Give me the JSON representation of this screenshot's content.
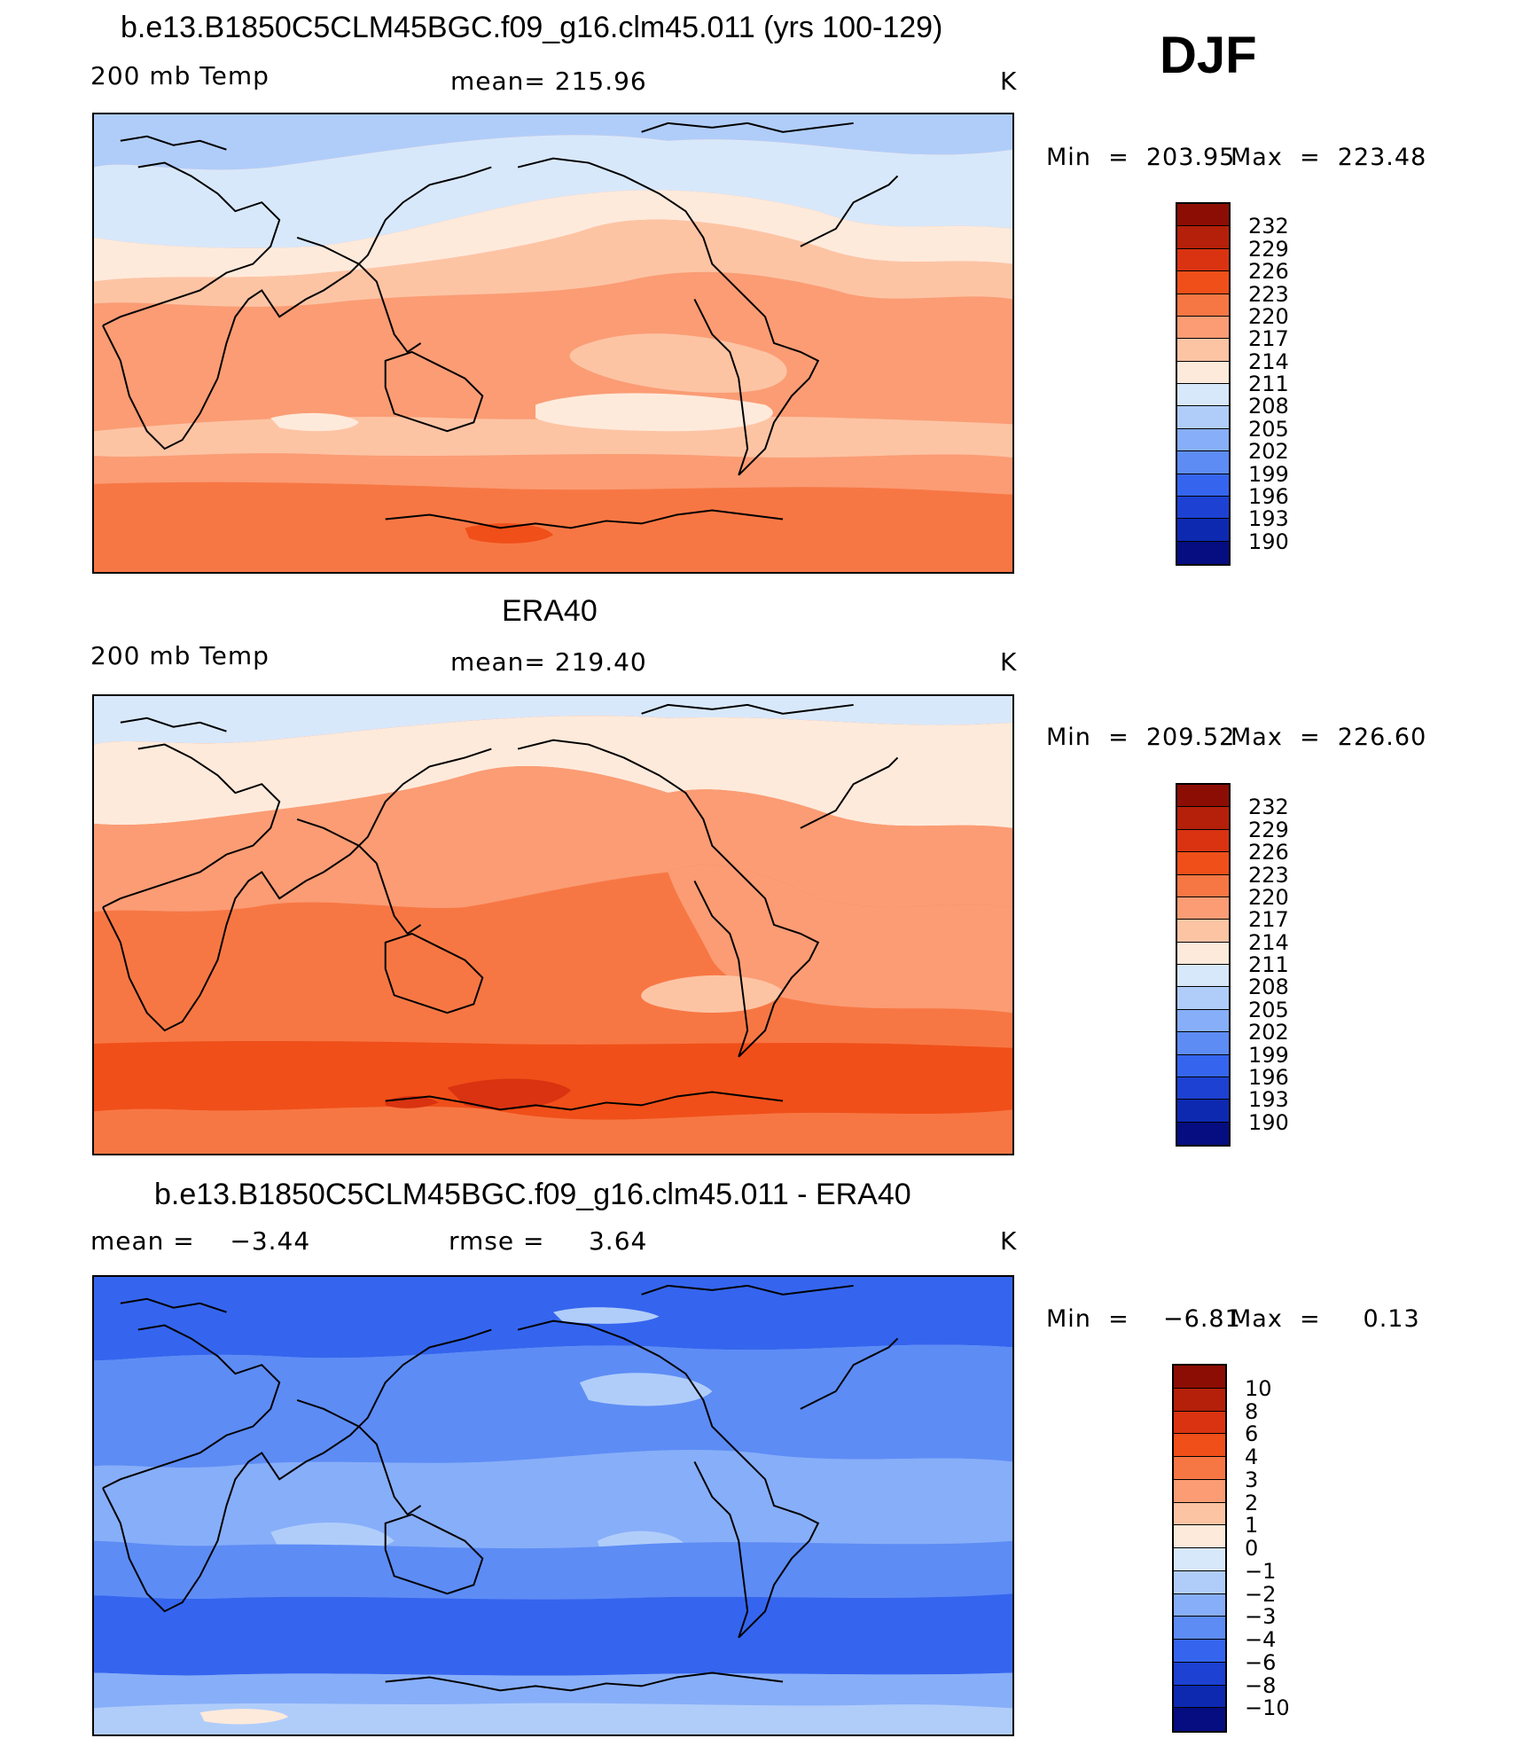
{
  "season": "DJF",
  "panels": [
    {
      "title": "b.e13.B1850C5CLM45BGC.f09_g16.clm45.011 (yrs 100-129)",
      "left": "200 mb Temp",
      "center": "mean= 215.96",
      "units": "K",
      "min_label": "Min  =  203.95",
      "max_label": "Max  =  223.48",
      "colorbar_labels": [
        "232",
        "229",
        "226",
        "223",
        "220",
        "217",
        "214",
        "211",
        "208",
        "205",
        "202",
        "199",
        "196",
        "193",
        "190"
      ],
      "colors": [
        "#8c0d04",
        "#b42009",
        "#d93311",
        "#f04f19",
        "#f77744",
        "#fb9c74",
        "#fdc4a4",
        "#feeadb",
        "#d8e8fb",
        "#b0cdfa",
        "#87aef8",
        "#5d8cf5",
        "#3565ee",
        "#1d41d2",
        "#0d29b0",
        "#050d80"
      ]
    },
    {
      "title": "ERA40",
      "left": "200 mb Temp",
      "center": "mean= 219.40",
      "units": "K",
      "min_label": "Min  =  209.52",
      "max_label": "Max  =  226.60",
      "colorbar_labels": [
        "232",
        "229",
        "226",
        "223",
        "220",
        "217",
        "214",
        "211",
        "208",
        "205",
        "202",
        "199",
        "196",
        "193",
        "190"
      ],
      "colors": [
        "#8c0d04",
        "#b42009",
        "#d93311",
        "#f04f19",
        "#f77744",
        "#fb9c74",
        "#fdc4a4",
        "#feeadb",
        "#d8e8fb",
        "#b0cdfa",
        "#87aef8",
        "#5d8cf5",
        "#3565ee",
        "#1d41d2",
        "#0d29b0",
        "#050d80"
      ]
    },
    {
      "title": "b.e13.B1850C5CLM45BGC.f09_g16.clm45.011 - ERA40",
      "left": "mean =    −3.44",
      "center": "rmse =     3.64",
      "units": "K",
      "min_label": "Min  =    −6.81",
      "max_label": "Max  =     0.13",
      "colorbar_labels": [
        "10",
        "8",
        "6",
        "4",
        "3",
        "2",
        "1",
        "0",
        "−1",
        "−2",
        "−3",
        "−4",
        "−6",
        "−8",
        "−10"
      ],
      "colors": [
        "#8c0d04",
        "#b42009",
        "#d93311",
        "#f04f19",
        "#f77744",
        "#fb9c74",
        "#fdc4a4",
        "#feeadb",
        "#d8e8fb",
        "#b0cdfa",
        "#87aef8",
        "#5d8cf5",
        "#3565ee",
        "#1d41d2",
        "#0d29b0",
        "#050d80"
      ]
    }
  ]
}
